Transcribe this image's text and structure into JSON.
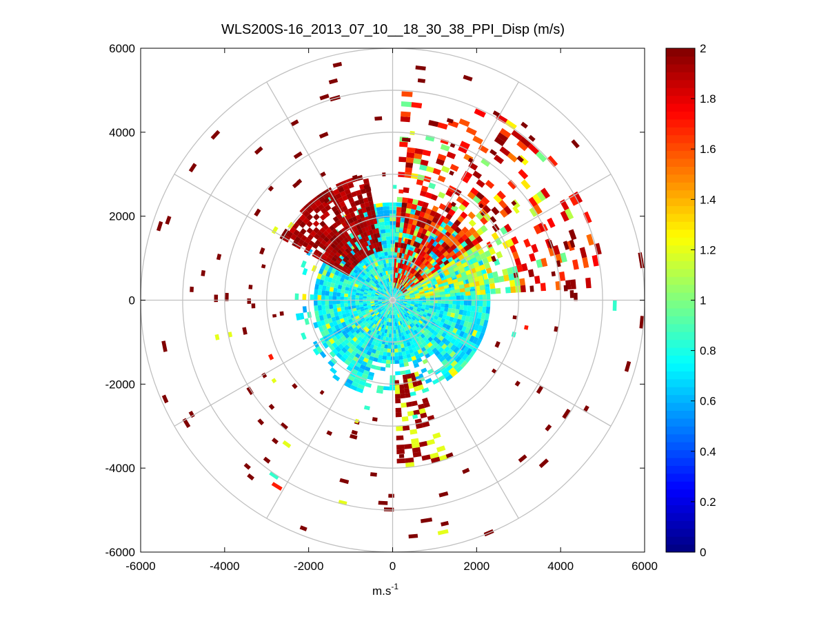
{
  "chart_data": {
    "type": "heatmap",
    "subtype": "polar-ppi-scan",
    "title": "WLS200S-16_2013_07_10__18_30_38_PPI_Disp (m/s)",
    "xlabel": "m.s",
    "xlabel_superscript": "-1",
    "ylabel": "",
    "xlim": [
      -6000,
      6000
    ],
    "ylim": [
      -6000,
      6000
    ],
    "x_ticks": [
      "-6000",
      "-4000",
      "-2000",
      "0",
      "2000",
      "4000",
      "6000"
    ],
    "y_ticks": [
      "6000",
      "4000",
      "2000",
      "0",
      "-2000",
      "-4000",
      "-6000"
    ],
    "x_tick_values": [
      -6000,
      -4000,
      -2000,
      0,
      2000,
      4000,
      6000
    ],
    "y_tick_values": [
      6000,
      4000,
      2000,
      0,
      -2000,
      -4000,
      -6000
    ],
    "polar_grid": {
      "ring_radii": [
        1000,
        2000,
        3000,
        4000,
        5000,
        6000
      ],
      "spoke_angles_deg": [
        0,
        30,
        60,
        90,
        120,
        150,
        180,
        210,
        240,
        270,
        300,
        330
      ]
    },
    "colorbar": {
      "colormap": "jet",
      "range": [
        0,
        2
      ],
      "tick_values": [
        0,
        0.2,
        0.4,
        0.6,
        0.8,
        1,
        1.2,
        1.4,
        1.6,
        1.8,
        2
      ],
      "tick_labels": [
        "0",
        "0.2",
        "0.4",
        "0.6",
        "0.8",
        "1",
        "1.2",
        "1.4",
        "1.6",
        "1.8",
        "2"
      ]
    },
    "data_summary": {
      "inner_region": {
        "r_range": [
          0,
          2300
        ],
        "typical_value": 0.75,
        "description_values": "mostly 0.6–0.9 m/s"
      },
      "north_east_sector": {
        "azimuth_deg": [
          0,
          90
        ],
        "r_range": [
          0,
          5000
        ],
        "typical_value": 1.8
      },
      "north_west_sector": {
        "azimuth_deg": [
          300,
          350
        ],
        "r_range": [
          1200,
          3000
        ],
        "typical_value": 2.0
      },
      "outer_sparse_returns": {
        "r_range": [
          2500,
          6000
        ],
        "typical_value": 2.0
      }
    }
  },
  "colors": {
    "axis": "#000000",
    "grid": "#c0c0c0",
    "background": "#ffffff"
  }
}
